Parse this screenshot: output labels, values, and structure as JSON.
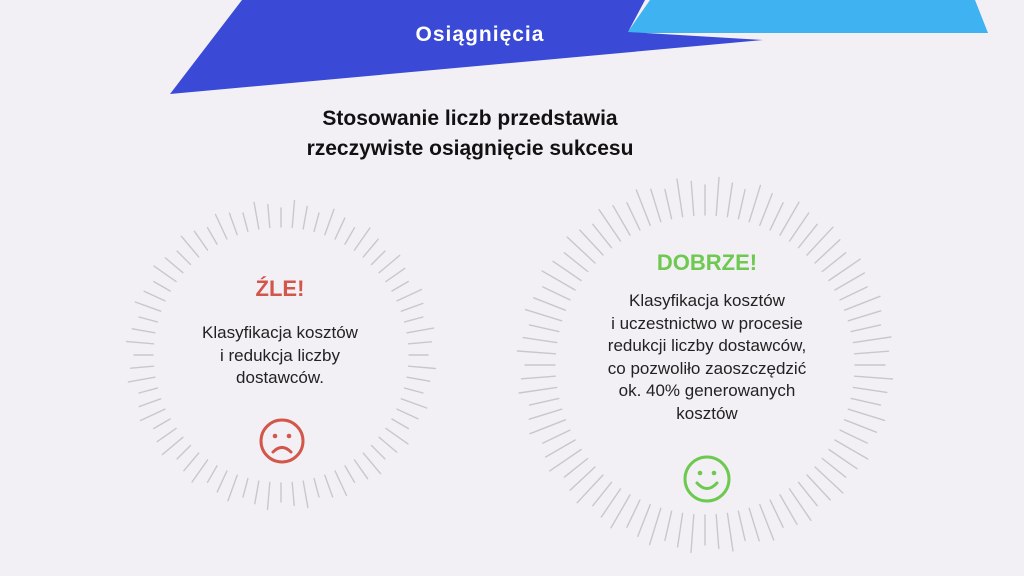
{
  "header": {
    "title": "Osiągnięcia",
    "colors": {
      "dark_blue": "#3a49d6",
      "light_blue": "#3fb2f2"
    }
  },
  "headline": {
    "lines": [
      "Stosowanie liczb przedstawia",
      "rzeczywiste osiągnięcie sukcesu"
    ]
  },
  "bad_card": {
    "title": "ŹLE!",
    "lines": [
      "Klasyfikacja kosztów",
      "i redukcja liczby",
      "dostawców."
    ],
    "color": "#d2564a",
    "icon": "sad-face-icon"
  },
  "good_card": {
    "title": "DOBRZE!",
    "lines": [
      "Klasyfikacja kosztów",
      "i uczestnictwo w procesie",
      "redukcji liczby dostawców,",
      "co pozwoliło zaoszczędzić",
      "ok. 40% generowanych",
      "kosztów"
    ],
    "color": "#6dc94f",
    "icon": "smile-face-icon"
  },
  "ray_color": "#c9c6cd"
}
